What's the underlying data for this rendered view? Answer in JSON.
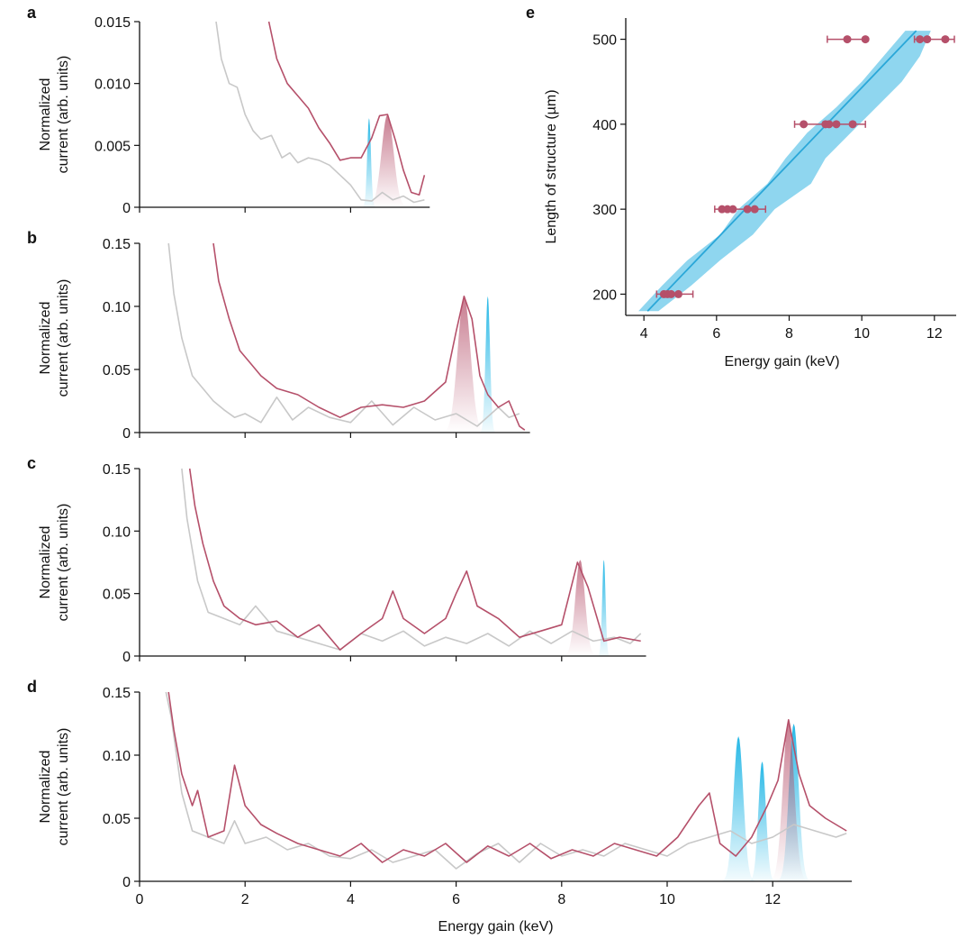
{
  "colors": {
    "measured": "#b5506a",
    "reference": "#c8c8c8",
    "simulation": "#27b8e6",
    "simulation_band": "#8fd6ef",
    "fit_line": "#2aa7d8",
    "axis": "#111111"
  },
  "chart_data": [
    {
      "panel": "a",
      "type": "line",
      "xlabel": "",
      "ylabel": [
        "Normalized",
        "current (arb. units)"
      ],
      "xlim": [
        0,
        5.5
      ],
      "ylim": [
        0,
        0.015
      ],
      "xticks": [
        0,
        2,
        4
      ],
      "yticks": [
        0,
        0.005,
        0.01,
        0.015
      ],
      "ytick_labels": [
        "0",
        "0.005",
        "0.010",
        "0.015"
      ],
      "series": [
        {
          "name": "reference",
          "x": [
            1.45,
            1.55,
            1.7,
            1.85,
            2.0,
            2.15,
            2.3,
            2.5,
            2.7,
            2.85,
            3.0,
            3.2,
            3.4,
            3.6,
            3.8,
            4.0,
            4.2,
            4.4,
            4.6,
            4.8,
            5.0,
            5.2,
            5.4
          ],
          "y": [
            0.015,
            0.012,
            0.01,
            0.0097,
            0.0075,
            0.0062,
            0.0055,
            0.0058,
            0.004,
            0.0044,
            0.0036,
            0.004,
            0.0038,
            0.0034,
            0.0026,
            0.0018,
            0.0006,
            0.0005,
            0.0012,
            0.0006,
            0.0009,
            0.0004,
            0.0006
          ]
        },
        {
          "name": "measured",
          "x": [
            2.45,
            2.6,
            2.8,
            3.0,
            3.2,
            3.4,
            3.6,
            3.8,
            4.0,
            4.2,
            4.4,
            4.55,
            4.7,
            4.85,
            5.0,
            5.15,
            5.3,
            5.4
          ],
          "y": [
            0.015,
            0.012,
            0.01,
            0.009,
            0.008,
            0.0064,
            0.0052,
            0.0038,
            0.004,
            0.004,
            0.0056,
            0.0074,
            0.0075,
            0.0054,
            0.003,
            0.0012,
            0.001,
            0.0026
          ]
        }
      ],
      "peak_measured": {
        "center": 4.7,
        "height": 0.0075,
        "width": 0.16
      },
      "peak_simulated": {
        "center": 4.35,
        "height": 0.0072,
        "width": 0.05
      }
    },
    {
      "panel": "b",
      "type": "line",
      "xlabel": "",
      "ylabel": [
        "Normalized",
        "current (arb. units)"
      ],
      "xlim": [
        0,
        7.4
      ],
      "ylim": [
        0,
        0.15
      ],
      "xticks": [
        0,
        2,
        4,
        6
      ],
      "yticks": [
        0,
        0.05,
        0.1,
        0.15
      ],
      "ytick_labels": [
        "0",
        "0.05",
        "0.10",
        "0.15"
      ],
      "series": [
        {
          "name": "reference",
          "x": [
            0.55,
            0.65,
            0.8,
            1.0,
            1.2,
            1.4,
            1.6,
            1.8,
            2.0,
            2.3,
            2.6,
            2.9,
            3.2,
            3.6,
            4.0,
            4.4,
            4.8,
            5.2,
            5.6,
            6.0,
            6.4,
            6.8,
            7.0,
            7.2
          ],
          "y": [
            0.15,
            0.11,
            0.075,
            0.045,
            0.035,
            0.025,
            0.018,
            0.012,
            0.015,
            0.008,
            0.028,
            0.01,
            0.02,
            0.012,
            0.008,
            0.025,
            0.006,
            0.02,
            0.01,
            0.015,
            0.005,
            0.02,
            0.012,
            0.015
          ]
        },
        {
          "name": "measured",
          "x": [
            1.4,
            1.5,
            1.7,
            1.9,
            2.1,
            2.3,
            2.6,
            3.0,
            3.4,
            3.8,
            4.2,
            4.6,
            5.0,
            5.4,
            5.8,
            6.0,
            6.15,
            6.3,
            6.45,
            6.6,
            6.8,
            7.0,
            7.2,
            7.3
          ],
          "y": [
            0.15,
            0.12,
            0.09,
            0.065,
            0.055,
            0.045,
            0.035,
            0.03,
            0.02,
            0.012,
            0.02,
            0.022,
            0.02,
            0.025,
            0.04,
            0.08,
            0.108,
            0.09,
            0.045,
            0.03,
            0.02,
            0.025,
            0.005,
            0.002
          ]
        }
      ],
      "peak_measured": {
        "center": 6.15,
        "height": 0.108,
        "width": 0.17
      },
      "peak_simulated": {
        "center": 6.6,
        "height": 0.108,
        "width": 0.06
      }
    },
    {
      "panel": "c",
      "type": "line",
      "xlabel": "",
      "ylabel": [
        "Normalized",
        "current (arb. units)"
      ],
      "xlim": [
        0,
        9.6
      ],
      "ylim": [
        0,
        0.15
      ],
      "xticks": [
        0,
        2,
        4,
        6,
        8
      ],
      "yticks": [
        0,
        0.05,
        0.1,
        0.15
      ],
      "ytick_labels": [
        "0",
        "0.05",
        "0.10",
        "0.15"
      ],
      "series": [
        {
          "name": "reference",
          "x": [
            0.8,
            0.9,
            1.1,
            1.3,
            1.6,
            1.9,
            2.2,
            2.6,
            3.0,
            3.4,
            3.8,
            4.2,
            4.6,
            5.0,
            5.4,
            5.8,
            6.2,
            6.6,
            7.0,
            7.4,
            7.8,
            8.2,
            8.6,
            9.0,
            9.3,
            9.5
          ],
          "y": [
            0.15,
            0.11,
            0.06,
            0.035,
            0.03,
            0.025,
            0.04,
            0.02,
            0.015,
            0.01,
            0.005,
            0.018,
            0.012,
            0.02,
            0.008,
            0.015,
            0.01,
            0.018,
            0.008,
            0.02,
            0.01,
            0.02,
            0.012,
            0.015,
            0.01,
            0.018
          ]
        },
        {
          "name": "measured",
          "x": [
            0.95,
            1.05,
            1.2,
            1.4,
            1.6,
            1.9,
            2.2,
            2.6,
            3.0,
            3.4,
            3.8,
            4.2,
            4.6,
            4.8,
            5.0,
            5.4,
            5.8,
            6.0,
            6.2,
            6.4,
            6.8,
            7.2,
            7.6,
            8.0,
            8.3,
            8.5,
            8.8,
            9.1,
            9.5
          ],
          "y": [
            0.15,
            0.12,
            0.09,
            0.06,
            0.04,
            0.03,
            0.025,
            0.028,
            0.015,
            0.025,
            0.005,
            0.018,
            0.03,
            0.052,
            0.03,
            0.018,
            0.03,
            0.05,
            0.068,
            0.04,
            0.03,
            0.015,
            0.02,
            0.025,
            0.075,
            0.055,
            0.012,
            0.015,
            0.012
          ]
        }
      ],
      "peak_measured": {
        "center": 8.35,
        "height": 0.077,
        "width": 0.13
      },
      "peak_simulated": {
        "center": 8.8,
        "height": 0.077,
        "width": 0.045
      }
    },
    {
      "panel": "d",
      "type": "line",
      "xlabel": "Energy gain (keV)",
      "ylabel": [
        "Normalized",
        "current (arb. units)"
      ],
      "xlim": [
        0,
        13.5
      ],
      "ylim": [
        0,
        0.15
      ],
      "xticks": [
        0,
        2,
        4,
        6,
        8,
        10,
        12
      ],
      "yticks": [
        0,
        0.05,
        0.1,
        0.15
      ],
      "ytick_labels": [
        "0",
        "0.05",
        "0.10",
        "0.15"
      ],
      "series": [
        {
          "name": "reference",
          "x": [
            0.5,
            0.6,
            0.8,
            1.0,
            1.3,
            1.6,
            1.8,
            2.0,
            2.4,
            2.8,
            3.2,
            3.6,
            4.0,
            4.4,
            4.8,
            5.2,
            5.6,
            6.0,
            6.4,
            6.8,
            7.2,
            7.6,
            8.0,
            8.4,
            8.8,
            9.2,
            9.6,
            10.0,
            10.4,
            10.8,
            11.2,
            11.6,
            12.0,
            12.4,
            12.8,
            13.2,
            13.4
          ],
          "y": [
            0.15,
            0.13,
            0.07,
            0.04,
            0.035,
            0.03,
            0.048,
            0.03,
            0.035,
            0.025,
            0.03,
            0.02,
            0.018,
            0.025,
            0.015,
            0.02,
            0.025,
            0.01,
            0.022,
            0.03,
            0.015,
            0.03,
            0.02,
            0.025,
            0.02,
            0.03,
            0.025,
            0.02,
            0.03,
            0.035,
            0.04,
            0.03,
            0.035,
            0.045,
            0.04,
            0.035,
            0.038
          ]
        },
        {
          "name": "measured",
          "x": [
            0.55,
            0.65,
            0.8,
            1.0,
            1.1,
            1.3,
            1.6,
            1.8,
            2.0,
            2.3,
            2.6,
            3.0,
            3.4,
            3.8,
            4.2,
            4.6,
            5.0,
            5.4,
            5.8,
            6.2,
            6.6,
            7.0,
            7.4,
            7.8,
            8.2,
            8.6,
            9.0,
            9.4,
            9.8,
            10.2,
            10.6,
            10.8,
            11.0,
            11.3,
            11.6,
            11.9,
            12.1,
            12.3,
            12.5,
            12.7,
            13.0,
            13.4
          ],
          "y": [
            0.15,
            0.12,
            0.085,
            0.06,
            0.072,
            0.035,
            0.04,
            0.092,
            0.06,
            0.045,
            0.038,
            0.03,
            0.025,
            0.02,
            0.03,
            0.015,
            0.025,
            0.02,
            0.03,
            0.015,
            0.028,
            0.02,
            0.03,
            0.018,
            0.025,
            0.02,
            0.03,
            0.025,
            0.02,
            0.035,
            0.06,
            0.07,
            0.03,
            0.02,
            0.035,
            0.06,
            0.08,
            0.128,
            0.085,
            0.06,
            0.05,
            0.04
          ]
        }
      ],
      "peak_measured": {
        "center": 12.3,
        "height": 0.128,
        "width": 0.15
      },
      "simulated_bands": [
        {
          "center": 11.35,
          "height": 0.115,
          "width": 0.13
        },
        {
          "center": 11.8,
          "height": 0.095,
          "width": 0.1
        },
        {
          "center": 12.4,
          "height": 0.125,
          "width": 0.13
        }
      ]
    },
    {
      "panel": "e",
      "type": "scatter",
      "xlabel": "Energy gain (keV)",
      "ylabel": [
        "Length of structure (µm)"
      ],
      "xlim": [
        3.5,
        12.6
      ],
      "ylim": [
        175,
        525
      ],
      "xticks": [
        4,
        6,
        8,
        10,
        12
      ],
      "yticks": [
        200,
        300,
        400,
        500
      ],
      "ytick_labels": [
        "200",
        "300",
        "400",
        "500"
      ],
      "fit_line": {
        "x": [
          4.1,
          11.5
        ],
        "y": [
          180,
          510
        ]
      },
      "simulation_band": {
        "y": [
          180,
          210,
          240,
          270,
          300,
          330,
          360,
          390,
          420,
          450,
          480,
          510
        ],
        "low": [
          3.85,
          4.5,
          5.2,
          6.1,
          6.6,
          7.4,
          7.9,
          8.5,
          9.3,
          10.0,
          10.6,
          11.2
        ],
        "high": [
          4.4,
          5.3,
          6.1,
          7.0,
          7.6,
          8.6,
          9.0,
          9.7,
          10.4,
          11.1,
          11.6,
          11.9
        ]
      },
      "points": [
        {
          "x": 4.55,
          "y": 200
        },
        {
          "x": 4.65,
          "y": 200
        },
        {
          "x": 4.75,
          "y": 200
        },
        {
          "x": 4.95,
          "y": 200
        },
        {
          "x": 6.15,
          "y": 300
        },
        {
          "x": 6.3,
          "y": 300
        },
        {
          "x": 6.45,
          "y": 300
        },
        {
          "x": 6.85,
          "y": 300
        },
        {
          "x": 7.05,
          "y": 300
        },
        {
          "x": 8.4,
          "y": 400
        },
        {
          "x": 9.0,
          "y": 400
        },
        {
          "x": 9.1,
          "y": 400
        },
        {
          "x": 9.3,
          "y": 400
        },
        {
          "x": 9.75,
          "y": 400
        },
        {
          "x": 9.6,
          "y": 500
        },
        {
          "x": 10.1,
          "y": 500
        },
        {
          "x": 11.6,
          "y": 500
        },
        {
          "x": 11.8,
          "y": 500
        },
        {
          "x": 12.3,
          "y": 500
        }
      ],
      "error_bars": [
        {
          "y": 200,
          "low": 4.35,
          "high": 5.35
        },
        {
          "y": 300,
          "low": 5.95,
          "high": 7.35
        },
        {
          "y": 400,
          "low": 8.15,
          "high": 10.1
        },
        {
          "y": 500,
          "low": 9.05,
          "high": 10.1
        },
        {
          "y": 500,
          "low": 11.45,
          "high": 12.55
        }
      ]
    }
  ]
}
